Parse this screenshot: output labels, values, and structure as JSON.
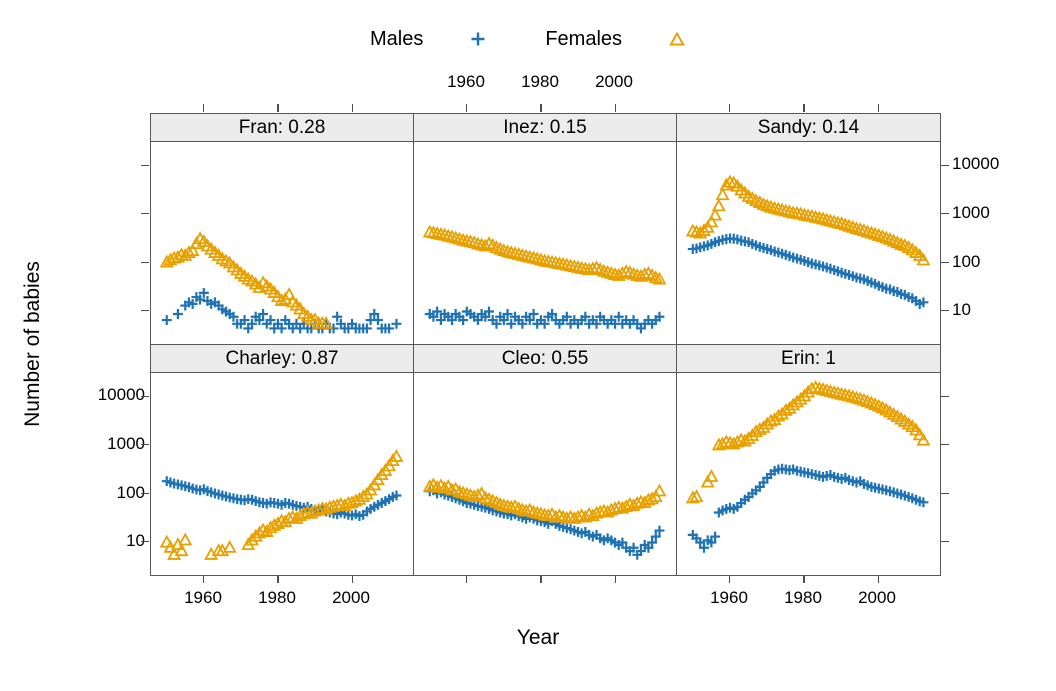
{
  "legend": {
    "items": [
      {
        "label": "Males",
        "symbol": "plus-icon"
      },
      {
        "label": "Females",
        "symbol": "triangle-icon"
      }
    ]
  },
  "colors": {
    "males": "#1F73B4",
    "females": "#E8A000",
    "strip_bg": "#ECECEC",
    "border": "#585858",
    "tick": "#4D4D4D"
  },
  "axes": {
    "x_label": "Year",
    "y_label": "Number of babies",
    "x_ticks": [
      1960,
      1980,
      2000
    ],
    "y_ticks": [
      10,
      100,
      1000,
      10000
    ],
    "y_scale": "log",
    "x_range": [
      1946,
      2016
    ],
    "y_range": [
      2,
      30000
    ]
  },
  "chart_data": {
    "type": "scatter",
    "layout": {
      "rows": 2,
      "cols": 3,
      "legend_position": "top",
      "grid": false,
      "y_scale": "log"
    },
    "series_names": [
      "Males",
      "Females"
    ],
    "years": [
      1950,
      1951,
      1952,
      1953,
      1954,
      1955,
      1956,
      1957,
      1958,
      1959,
      1960,
      1961,
      1962,
      1963,
      1964,
      1965,
      1966,
      1967,
      1968,
      1969,
      1970,
      1971,
      1972,
      1973,
      1974,
      1975,
      1976,
      1977,
      1978,
      1979,
      1980,
      1981,
      1982,
      1983,
      1984,
      1985,
      1986,
      1987,
      1988,
      1989,
      1990,
      1991,
      1992,
      1993,
      1994,
      1995,
      1996,
      1997,
      1998,
      1999,
      2000,
      2001,
      2002,
      2003,
      2004,
      2005,
      2006,
      2007,
      2008,
      2009,
      2010,
      2011,
      2012
    ],
    "panels": [
      {
        "title": "Fran: 0.28",
        "name": "Fran",
        "ratio": 0.28,
        "males": [
          6,
          null,
          null,
          8,
          null,
          12,
          14,
          13,
          18,
          16,
          22,
          15,
          13,
          14,
          12,
          10,
          9,
          8,
          7,
          5,
          5,
          6,
          4,
          5,
          7,
          6,
          8,
          5,
          6,
          4,
          5,
          4,
          6,
          5,
          4,
          5,
          4,
          5,
          4,
          4,
          5,
          4,
          4,
          5,
          4,
          4,
          7,
          5,
          4,
          4,
          5,
          4,
          4,
          4,
          4,
          6,
          8,
          6,
          4,
          4,
          4,
          null,
          5
        ],
        "females": [
          95,
          105,
          115,
          120,
          135,
          130,
          150,
          165,
          230,
          290,
          255,
          205,
          175,
          150,
          130,
          110,
          100,
          90,
          75,
          65,
          55,
          48,
          42,
          38,
          33,
          28,
          35,
          30,
          26,
          22,
          18,
          15,
          16,
          20,
          14,
          12,
          10,
          8,
          7,
          6,
          6,
          5,
          5,
          5,
          null,
          null,
          null,
          null,
          null,
          null,
          null,
          null,
          null,
          null,
          null,
          null,
          null,
          null,
          null,
          null,
          null,
          null,
          null
        ]
      },
      {
        "title": "Inez: 0.15",
        "name": "Inez",
        "ratio": 0.15,
        "males": [
          8,
          7,
          9,
          6,
          8,
          7,
          6,
          8,
          7,
          6,
          9,
          8,
          7,
          6,
          8,
          7,
          9,
          6,
          5,
          7,
          6,
          8,
          5,
          7,
          6,
          5,
          7,
          6,
          8,
          5,
          6,
          5,
          7,
          8,
          6,
          5,
          6,
          7,
          5,
          6,
          5,
          6,
          7,
          5,
          6,
          5,
          7,
          6,
          5,
          6,
          5,
          7,
          5,
          6,
          5,
          6,
          5,
          4,
          5,
          6,
          5,
          6,
          7
        ],
        "females": [
          400,
          385,
          370,
          355,
          345,
          330,
          315,
          300,
          285,
          270,
          260,
          250,
          240,
          225,
          215,
          205,
          230,
          210,
          190,
          175,
          165,
          155,
          148,
          142,
          136,
          130,
          125,
          120,
          115,
          110,
          105,
          100,
          97,
          94,
          91,
          88,
          85,
          82,
          79,
          76,
          73,
          70,
          68,
          66,
          69,
          72,
          66,
          61,
          58,
          55,
          52,
          50,
          55,
          60,
          57,
          53,
          50,
          48,
          52,
          55,
          50,
          45,
          42
        ]
      },
      {
        "title": "Sandy: 0.14",
        "name": "Sandy",
        "ratio": 0.14,
        "males": [
          180,
          185,
          195,
          205,
          215,
          230,
          250,
          265,
          280,
          290,
          300,
          295,
          285,
          270,
          260,
          250,
          230,
          215,
          200,
          190,
          180,
          170,
          160,
          152,
          144,
          136,
          128,
          120,
          114,
          108,
          102,
          96,
          90,
          86,
          82,
          78,
          74,
          70,
          66,
          62,
          58,
          55,
          52,
          49,
          46,
          44,
          42,
          39,
          36,
          34,
          31,
          29,
          27,
          26,
          24,
          23,
          21,
          20,
          18,
          17,
          15,
          13,
          14
        ],
        "females": [
          420,
          400,
          380,
          430,
          500,
          650,
          900,
          1400,
          2400,
          3800,
          4400,
          4200,
          3600,
          3000,
          2600,
          2200,
          2000,
          1800,
          1650,
          1500,
          1400,
          1320,
          1250,
          1200,
          1150,
          1100,
          1050,
          1000,
          980,
          950,
          900,
          870,
          850,
          810,
          780,
          750,
          710,
          680,
          650,
          620,
          600,
          560,
          530,
          500,
          470,
          450,
          430,
          400,
          380,
          360,
          340,
          320,
          300,
          280,
          260,
          240,
          220,
          210,
          190,
          170,
          150,
          130,
          105
        ]
      },
      {
        "title": "Charley: 0.87",
        "name": "Charley",
        "ratio": 0.87,
        "males": [
          170,
          160,
          152,
          146,
          140,
          134,
          128,
          120,
          114,
          110,
          116,
          106,
          100,
          95,
          90,
          86,
          82,
          78,
          75,
          72,
          70,
          68,
          72,
          70,
          66,
          62,
          60,
          58,
          62,
          60,
          58,
          55,
          60,
          58,
          55,
          52,
          50,
          48,
          50,
          45,
          42,
          40,
          42,
          40,
          38,
          36,
          35,
          38,
          36,
          34,
          33,
          35,
          32,
          34,
          40,
          45,
          50,
          55,
          60,
          66,
          72,
          80,
          86
        ],
        "females": [
          9,
          7,
          5,
          8,
          6,
          10,
          null,
          null,
          null,
          null,
          null,
          null,
          5,
          null,
          6,
          6,
          null,
          7,
          null,
          null,
          null,
          null,
          8,
          10,
          12,
          14,
          16,
          15,
          18,
          20,
          22,
          25,
          24,
          28,
          30,
          28,
          32,
          35,
          38,
          36,
          40,
          42,
          45,
          44,
          48,
          50,
          52,
          55,
          52,
          58,
          60,
          65,
          70,
          80,
          90,
          110,
          140,
          180,
          230,
          280,
          350,
          450,
          550
        ]
      },
      {
        "title": "Cleo: 0.55",
        "name": "Cleo",
        "ratio": 0.55,
        "males": [
          105,
          110,
          95,
          100,
          90,
          85,
          80,
          75,
          70,
          65,
          60,
          58,
          55,
          52,
          50,
          48,
          45,
          42,
          40,
          38,
          36,
          35,
          33,
          35,
          32,
          30,
          28,
          30,
          28,
          26,
          25,
          24,
          22,
          25,
          22,
          20,
          19,
          18,
          17,
          16,
          15,
          14,
          15,
          13,
          12,
          13,
          11,
          10,
          11,
          10,
          9,
          8,
          9,
          7,
          6,
          7,
          5,
          6,
          8,
          7,
          9,
          12,
          16
        ],
        "females": [
          130,
          140,
          125,
          135,
          120,
          130,
          110,
          115,
          100,
          95,
          90,
          85,
          80,
          85,
          92,
          75,
          70,
          65,
          60,
          55,
          52,
          50,
          48,
          50,
          45,
          42,
          40,
          42,
          38,
          36,
          35,
          33,
          32,
          34,
          30,
          32,
          30,
          28,
          30,
          28,
          30,
          32,
          30,
          34,
          32,
          36,
          38,
          40,
          38,
          42,
          45,
          48,
          46,
          50,
          55,
          52,
          58,
          62,
          60,
          68,
          72,
          80,
          105
        ]
      },
      {
        "title": "Erin: 1",
        "name": "Erin",
        "ratio": 1,
        "males": [
          13,
          11,
          9,
          7,
          10,
          9,
          12,
          38,
          42,
          45,
          48,
          45,
          50,
          60,
          70,
          80,
          95,
          110,
          130,
          160,
          200,
          240,
          280,
          300,
          310,
          300,
          290,
          300,
          280,
          270,
          260,
          250,
          240,
          230,
          220,
          210,
          220,
          230,
          210,
          200,
          190,
          200,
          180,
          170,
          160,
          170,
          150,
          140,
          130,
          125,
          120,
          115,
          110,
          105,
          100,
          95,
          90,
          85,
          80,
          75,
          70,
          65,
          62
        ],
        "females": [
          75,
          80,
          null,
          null,
          160,
          210,
          null,
          950,
          1000,
          1100,
          1050,
          1000,
          1100,
          1200,
          1150,
          1300,
          1500,
          1800,
          2000,
          2200,
          2600,
          3000,
          3200,
          3800,
          4200,
          5000,
          5500,
          6500,
          7500,
          8500,
          10000,
          12000,
          14000,
          15000,
          14200,
          13600,
          13000,
          12400,
          11800,
          11300,
          10800,
          10400,
          10000,
          9500,
          9000,
          8600,
          8100,
          7600,
          7100,
          6600,
          6100,
          5600,
          5100,
          4600,
          4100,
          3700,
          3300,
          2950,
          2600,
          2300,
          1950,
          1550,
          1200
        ]
      }
    ]
  }
}
